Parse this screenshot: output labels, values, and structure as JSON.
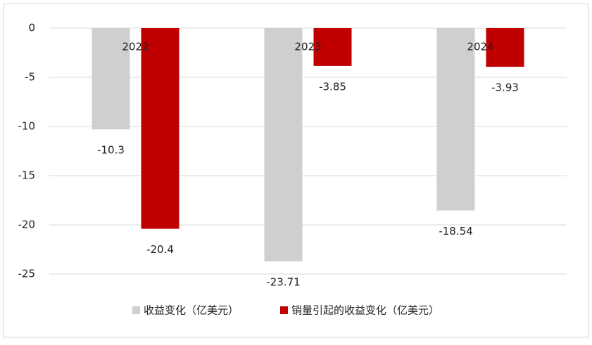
{
  "chart_data": {
    "type": "bar",
    "categories": [
      "2022",
      "2023",
      "2024"
    ],
    "series": [
      {
        "name": "收益变化（亿美元）",
        "color": "#d0cece",
        "values": [
          -10.3,
          -23.71,
          -18.54
        ]
      },
      {
        "name": "销量引起的收益变化（亿美元）",
        "color": "#c00000",
        "values": [
          -20.4,
          -3.85,
          -3.93
        ]
      }
    ],
    "ylim": [
      -25,
      0
    ],
    "yticks": [
      0,
      -5,
      -10,
      -15,
      -20,
      -25
    ],
    "grid": true,
    "legend": "bottom"
  }
}
